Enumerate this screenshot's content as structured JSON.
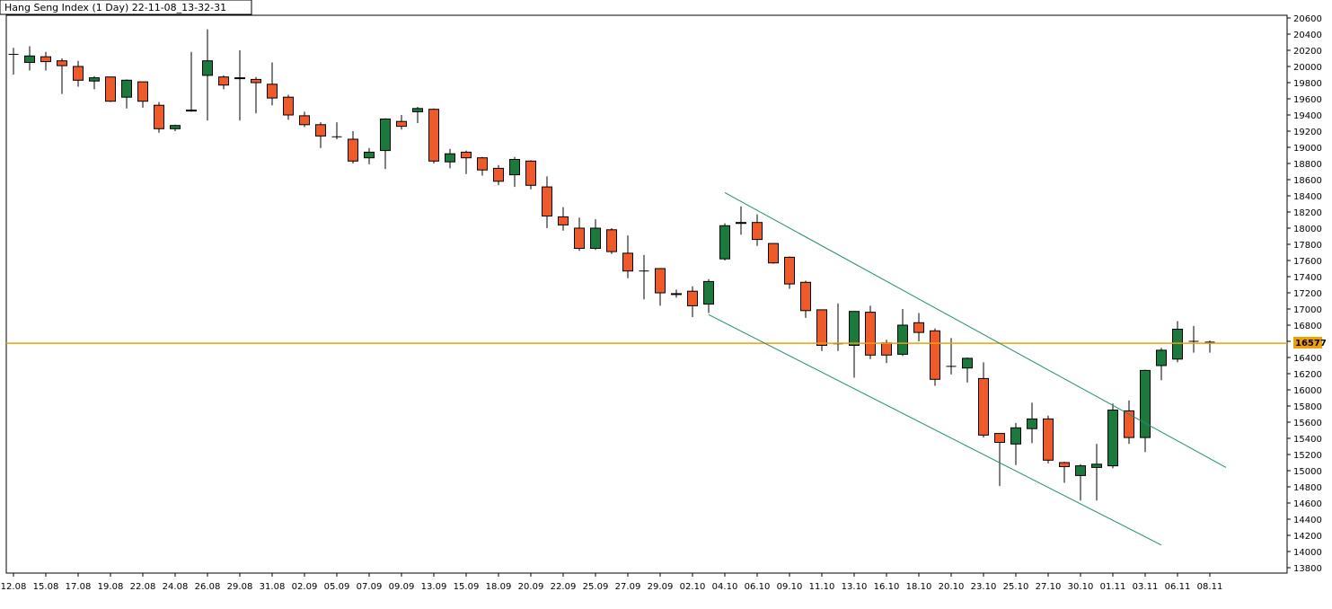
{
  "title": "Hang Seng Index (1 Day) 22-11-08_13-32-31",
  "chart_data": {
    "type": "candlestick",
    "title": "Hang Seng Index (1 Day) 22-11-08_13-32-31",
    "ylim": [
      13800,
      20600
    ],
    "y_ticks": [
      13800,
      14000,
      14200,
      14400,
      14600,
      14800,
      15000,
      15200,
      15400,
      15600,
      15800,
      16000,
      16200,
      16400,
      16600,
      16800,
      17000,
      17200,
      17400,
      17600,
      17800,
      18000,
      18200,
      18400,
      18600,
      18800,
      19000,
      19200,
      19400,
      19600,
      19800,
      20000,
      20200,
      20400,
      20600
    ],
    "x_tick_labels": [
      "12.08",
      "15.08",
      "17.08",
      "19.08",
      "22.08",
      "24.08",
      "26.08",
      "29.08",
      "31.08",
      "02.09",
      "05.09",
      "07.09",
      "09.09",
      "13.09",
      "15.09",
      "18.09",
      "20.09",
      "22.09",
      "25.09",
      "27.09",
      "29.09",
      "02.10",
      "04.10",
      "06.10",
      "09.10",
      "11.10",
      "13.10",
      "16.10",
      "18.10",
      "20.10",
      "23.10",
      "25.10",
      "27.10",
      "30.10",
      "01.11",
      "03.11",
      "06.11",
      "08.11"
    ],
    "last_price": 16577,
    "last_price_label": "16577",
    "colors": {
      "up": "#1a7a3c",
      "down": "#f05a28",
      "level_line": "#f0a000",
      "channel": "#1f8f6f",
      "axis": "#000000"
    },
    "grid": false,
    "candles": [
      {
        "o": 20150,
        "h": 20230,
        "l": 19900,
        "c": 20150
      },
      {
        "o": 20050,
        "h": 20250,
        "l": 19950,
        "c": 20130
      },
      {
        "o": 20120,
        "h": 20180,
        "l": 19950,
        "c": 20060
      },
      {
        "o": 20070,
        "h": 20100,
        "l": 19660,
        "c": 20010
      },
      {
        "o": 20000,
        "h": 20070,
        "l": 19750,
        "c": 19830
      },
      {
        "o": 19820,
        "h": 19880,
        "l": 19720,
        "c": 19860
      },
      {
        "o": 19870,
        "h": 19870,
        "l": 19560,
        "c": 19570
      },
      {
        "o": 19620,
        "h": 19840,
        "l": 19480,
        "c": 19830
      },
      {
        "o": 19810,
        "h": 19810,
        "l": 19490,
        "c": 19570
      },
      {
        "o": 19520,
        "h": 19560,
        "l": 19180,
        "c": 19230
      },
      {
        "o": 19230,
        "h": 19280,
        "l": 19200,
        "c": 19270
      },
      {
        "o": 19450,
        "h": 20180,
        "l": 19440,
        "c": 19460
      },
      {
        "o": 19890,
        "h": 20460,
        "l": 19330,
        "c": 20070
      },
      {
        "o": 19870,
        "h": 19890,
        "l": 19720,
        "c": 19770
      },
      {
        "o": 19860,
        "h": 20200,
        "l": 19330,
        "c": 19850
      },
      {
        "o": 19840,
        "h": 19870,
        "l": 19420,
        "c": 19800
      },
      {
        "o": 19780,
        "h": 20050,
        "l": 19520,
        "c": 19610
      },
      {
        "o": 19620,
        "h": 19650,
        "l": 19340,
        "c": 19400
      },
      {
        "o": 19390,
        "h": 19440,
        "l": 19250,
        "c": 19280
      },
      {
        "o": 19280,
        "h": 19310,
        "l": 18990,
        "c": 19140
      },
      {
        "o": 19130,
        "h": 19310,
        "l": 19100,
        "c": 19130
      },
      {
        "o": 19100,
        "h": 19200,
        "l": 18800,
        "c": 18830
      },
      {
        "o": 18870,
        "h": 18990,
        "l": 18790,
        "c": 18940
      },
      {
        "o": 18960,
        "h": 19360,
        "l": 18730,
        "c": 19350
      },
      {
        "o": 19320,
        "h": 19400,
        "l": 19220,
        "c": 19260
      },
      {
        "o": 19440,
        "h": 19500,
        "l": 19300,
        "c": 19480
      },
      {
        "o": 19470,
        "h": 19480,
        "l": 18800,
        "c": 18830
      },
      {
        "o": 18820,
        "h": 18980,
        "l": 18740,
        "c": 18920
      },
      {
        "o": 18940,
        "h": 18960,
        "l": 18670,
        "c": 18870
      },
      {
        "o": 18870,
        "h": 18880,
        "l": 18650,
        "c": 18720
      },
      {
        "o": 18740,
        "h": 18780,
        "l": 18530,
        "c": 18580
      },
      {
        "o": 18660,
        "h": 18880,
        "l": 18510,
        "c": 18850
      },
      {
        "o": 18830,
        "h": 18840,
        "l": 18480,
        "c": 18530
      },
      {
        "o": 18510,
        "h": 18640,
        "l": 18000,
        "c": 18150
      },
      {
        "o": 18140,
        "h": 18260,
        "l": 17970,
        "c": 18040
      },
      {
        "o": 18000,
        "h": 18130,
        "l": 17720,
        "c": 17750
      },
      {
        "o": 17750,
        "h": 18110,
        "l": 17730,
        "c": 18000
      },
      {
        "o": 17980,
        "h": 18000,
        "l": 17680,
        "c": 17710
      },
      {
        "o": 17690,
        "h": 17910,
        "l": 17380,
        "c": 17470
      },
      {
        "o": 17470,
        "h": 17670,
        "l": 17120,
        "c": 17470
      },
      {
        "o": 17500,
        "h": 17500,
        "l": 17040,
        "c": 17200
      },
      {
        "o": 17190,
        "h": 17240,
        "l": 17140,
        "c": 17180
      },
      {
        "o": 17220,
        "h": 17280,
        "l": 16900,
        "c": 17040
      },
      {
        "o": 17060,
        "h": 17370,
        "l": 16950,
        "c": 17340
      },
      {
        "o": 17620,
        "h": 18060,
        "l": 17600,
        "c": 18030
      },
      {
        "o": 18070,
        "h": 18270,
        "l": 17920,
        "c": 18060
      },
      {
        "o": 18070,
        "h": 18170,
        "l": 17780,
        "c": 17860
      },
      {
        "o": 17810,
        "h": 17810,
        "l": 17560,
        "c": 17570
      },
      {
        "o": 17640,
        "h": 17650,
        "l": 17250,
        "c": 17310
      },
      {
        "o": 17330,
        "h": 17350,
        "l": 16890,
        "c": 16980
      },
      {
        "o": 16990,
        "h": 16990,
        "l": 16480,
        "c": 16550
      },
      {
        "o": 16570,
        "h": 17070,
        "l": 16480,
        "c": 16570
      },
      {
        "o": 16550,
        "h": 16970,
        "l": 16150,
        "c": 16970
      },
      {
        "o": 16960,
        "h": 17040,
        "l": 16380,
        "c": 16430
      },
      {
        "o": 16580,
        "h": 16620,
        "l": 16330,
        "c": 16430
      },
      {
        "o": 16440,
        "h": 17000,
        "l": 16420,
        "c": 16800
      },
      {
        "o": 16830,
        "h": 16950,
        "l": 16600,
        "c": 16710
      },
      {
        "o": 16730,
        "h": 16760,
        "l": 16050,
        "c": 16130
      },
      {
        "o": 16290,
        "h": 16640,
        "l": 16190,
        "c": 16290
      },
      {
        "o": 16270,
        "h": 16400,
        "l": 16090,
        "c": 16390
      },
      {
        "o": 16140,
        "h": 16340,
        "l": 15410,
        "c": 15440
      },
      {
        "o": 15460,
        "h": 15460,
        "l": 14810,
        "c": 15350
      },
      {
        "o": 15330,
        "h": 15590,
        "l": 15070,
        "c": 15530
      },
      {
        "o": 15520,
        "h": 15840,
        "l": 15340,
        "c": 15640
      },
      {
        "o": 15640,
        "h": 15680,
        "l": 15090,
        "c": 15130
      },
      {
        "o": 15100,
        "h": 15110,
        "l": 14850,
        "c": 15050
      },
      {
        "o": 14940,
        "h": 15080,
        "l": 14630,
        "c": 15060
      },
      {
        "o": 15040,
        "h": 15330,
        "l": 14630,
        "c": 15080
      },
      {
        "o": 15060,
        "h": 15830,
        "l": 15030,
        "c": 15750
      },
      {
        "o": 15740,
        "h": 15870,
        "l": 15330,
        "c": 15410
      },
      {
        "o": 15410,
        "h": 16250,
        "l": 15230,
        "c": 16240
      },
      {
        "o": 16300,
        "h": 16520,
        "l": 16120,
        "c": 16490
      },
      {
        "o": 16380,
        "h": 16850,
        "l": 16340,
        "c": 16750
      },
      {
        "o": 16600,
        "h": 16790,
        "l": 16460,
        "c": 16600
      },
      {
        "o": 16590,
        "h": 16610,
        "l": 16460,
        "c": 16590
      }
    ],
    "channel": {
      "upper": [
        {
          "i": 44,
          "p": 18440
        },
        {
          "i": 75,
          "p": 15040
        }
      ],
      "lower": [
        {
          "i": 43,
          "p": 16930
        },
        {
          "i": 71,
          "p": 14080
        }
      ]
    }
  }
}
